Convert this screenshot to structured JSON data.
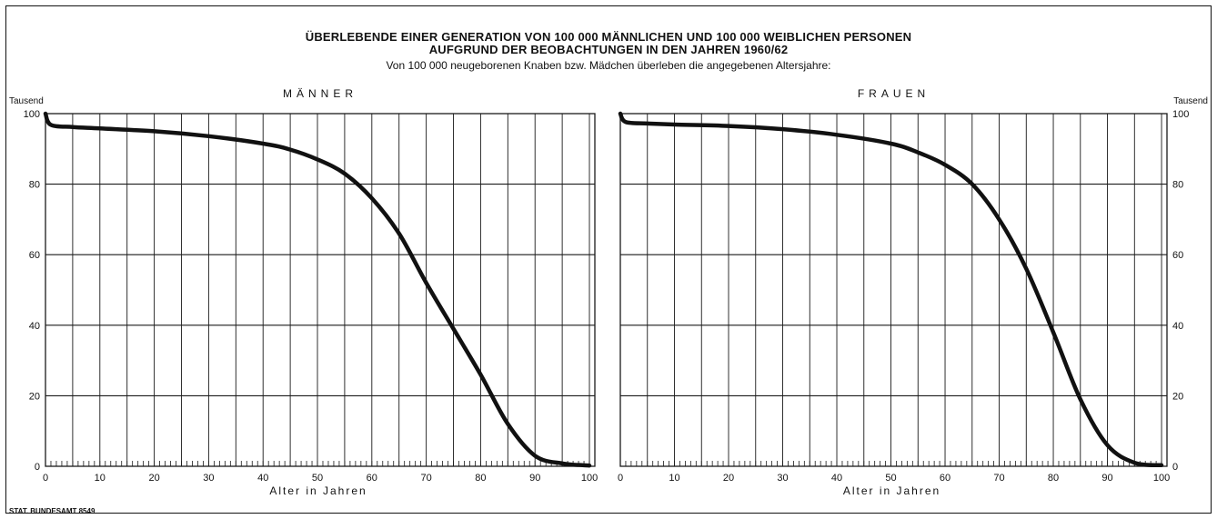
{
  "title_line1": "ÜBERLEBENDE EINER GENERATION VON 100 000 MÄNNLICHEN UND 100 000 WEIBLICHEN PERSONEN",
  "title_line2": "AUFGRUND DER BEOBACHTUNGEN IN DEN JAHREN 1960/62",
  "subtitle": "Von 100 000 neugeborenen Knaben bzw. Mädchen überleben die angegebenen Altersjahre:",
  "credit": "STAT. BUNDESAMT 8549",
  "colors": {
    "line": "#111111",
    "grid": "#1a1a1a",
    "background": "#ffffff"
  },
  "chart_data": [
    {
      "type": "line",
      "title": "MÄNNER",
      "xlabel": "Alter in Jahren",
      "ylabel": "Tausend",
      "xlim": [
        0,
        101
      ],
      "ylim": [
        0,
        100
      ],
      "xticks": [
        0,
        10,
        20,
        30,
        40,
        50,
        60,
        70,
        80,
        90,
        100
      ],
      "yticks": [
        0,
        20,
        40,
        60,
        80,
        100
      ],
      "grid": true,
      "series": [
        {
          "x": [
            0,
            1,
            5,
            10,
            20,
            30,
            40,
            45,
            50,
            55,
            60,
            65,
            70,
            75,
            80,
            85,
            90,
            95,
            100
          ],
          "values": [
            100,
            96.8,
            96.2,
            95.8,
            95.0,
            93.6,
            91.5,
            89.8,
            87.0,
            83.0,
            76.0,
            66.0,
            52.0,
            39.0,
            26.0,
            12.0,
            3.0,
            0.8,
            0.2
          ]
        }
      ]
    },
    {
      "type": "line",
      "title": "FRAUEN",
      "xlabel": "Alter in Jahren",
      "ylabel": "Tausend",
      "xlim": [
        0,
        101
      ],
      "ylim": [
        0,
        100
      ],
      "xticks": [
        0,
        10,
        20,
        30,
        40,
        50,
        60,
        70,
        80,
        90,
        100
      ],
      "yticks": [
        0,
        20,
        40,
        60,
        80,
        100
      ],
      "grid": true,
      "series": [
        {
          "x": [
            0,
            1,
            5,
            10,
            20,
            30,
            40,
            50,
            55,
            60,
            65,
            70,
            75,
            80,
            85,
            90,
            95,
            100
          ],
          "values": [
            100,
            97.6,
            97.2,
            96.9,
            96.5,
            95.6,
            94.0,
            91.5,
            89.0,
            85.5,
            80.0,
            70.0,
            56.0,
            38.0,
            19.0,
            6.0,
            1.0,
            0.3
          ]
        }
      ]
    }
  ]
}
